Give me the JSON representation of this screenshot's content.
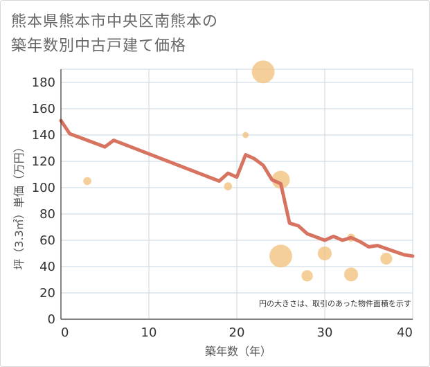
{
  "title_lines": [
    "熊本県熊本市中央区南熊本の",
    "築年数別中古戸建て価格"
  ],
  "chart_data": {
    "type": "line+bubble",
    "xlabel": "築年数（年）",
    "ylabel": "坪（3.3㎡）単価（万円）",
    "xlim": [
      0,
      40
    ],
    "ylim": [
      0,
      190
    ],
    "xticks": [
      0,
      10,
      20,
      30,
      40
    ],
    "yticks": [
      0,
      20,
      40,
      60,
      80,
      100,
      120,
      140,
      160,
      180
    ],
    "grid": true,
    "note": "円の大きさは、取引のあった物件面積を示す",
    "colors": {
      "line": "#d77461",
      "bubble": "#f2c27c",
      "grid": "#c9d7e0"
    },
    "line": {
      "name": "trend",
      "x": [
        0,
        1,
        5,
        6,
        18,
        19,
        20,
        21,
        22,
        23,
        24,
        25,
        26,
        27,
        28,
        30,
        31,
        32,
        33,
        34,
        35,
        36,
        39,
        40
      ],
      "y": [
        151,
        141,
        131,
        136,
        105,
        111,
        108,
        125,
        122,
        117,
        106,
        103,
        73,
        71,
        65,
        60,
        63,
        60,
        62,
        59,
        55,
        56,
        49,
        48
      ]
    },
    "bubbles": [
      {
        "x": 3,
        "y": 105,
        "size": 1
      },
      {
        "x": 19,
        "y": 101,
        "size": 1
      },
      {
        "x": 21,
        "y": 140,
        "size": 0.6
      },
      {
        "x": 23,
        "y": 188,
        "size": 8
      },
      {
        "x": 25,
        "y": 106,
        "size": 5
      },
      {
        "x": 25,
        "y": 48,
        "size": 8
      },
      {
        "x": 28,
        "y": 33,
        "size": 2
      },
      {
        "x": 30,
        "y": 50,
        "size": 3
      },
      {
        "x": 33,
        "y": 62,
        "size": 1
      },
      {
        "x": 33,
        "y": 34,
        "size": 3
      },
      {
        "x": 37,
        "y": 46,
        "size": 2.2
      }
    ]
  }
}
